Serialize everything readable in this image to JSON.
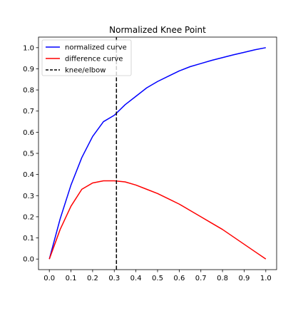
{
  "chart_data": {
    "type": "line",
    "title": "Normalized Knee Point",
    "xlabel": "",
    "ylabel": "",
    "xlim": [
      -0.05,
      1.05
    ],
    "ylim": [
      -0.05,
      1.05
    ],
    "xticks": [
      0.0,
      0.1,
      0.2,
      0.3,
      0.4,
      0.5,
      0.6,
      0.7,
      0.8,
      0.9,
      1.0
    ],
    "yticks": [
      0.0,
      0.1,
      0.2,
      0.3,
      0.4,
      0.5,
      0.6,
      0.7,
      0.8,
      0.9,
      1.0
    ],
    "xtick_labels": [
      "0.0",
      "0.1",
      "0.2",
      "0.3",
      "0.4",
      "0.5",
      "0.6",
      "0.7",
      "0.8",
      "0.9",
      "1.0"
    ],
    "ytick_labels": [
      "0.0",
      "0.1",
      "0.2",
      "0.3",
      "0.4",
      "0.5",
      "0.6",
      "0.7",
      "0.8",
      "0.9",
      "1.0"
    ],
    "grid": false,
    "legend": "top-left",
    "x": [
      0.0,
      0.05,
      0.1,
      0.15,
      0.2,
      0.25,
      0.3,
      0.35,
      0.4,
      0.45,
      0.5,
      0.55,
      0.6,
      0.65,
      0.7,
      0.75,
      0.8,
      0.85,
      0.9,
      0.95,
      1.0
    ],
    "series": [
      {
        "name": "normalized curve",
        "color": "#0000ff",
        "values": [
          0.0,
          0.19,
          0.35,
          0.48,
          0.58,
          0.65,
          0.68,
          0.73,
          0.77,
          0.81,
          0.84,
          0.865,
          0.89,
          0.91,
          0.925,
          0.94,
          0.953,
          0.966,
          0.978,
          0.99,
          1.0
        ]
      },
      {
        "name": "difference curve",
        "color": "#ff0000",
        "values": [
          0.0,
          0.14,
          0.25,
          0.33,
          0.36,
          0.37,
          0.37,
          0.365,
          0.35,
          0.33,
          0.31,
          0.285,
          0.26,
          0.23,
          0.2,
          0.17,
          0.14,
          0.105,
          0.07,
          0.035,
          0.0
        ]
      }
    ],
    "knee": {
      "name": "knee/elbow",
      "x": 0.31,
      "ymin": -0.05,
      "ymax": 1.05,
      "color": "#000000",
      "style": "dashed"
    }
  }
}
